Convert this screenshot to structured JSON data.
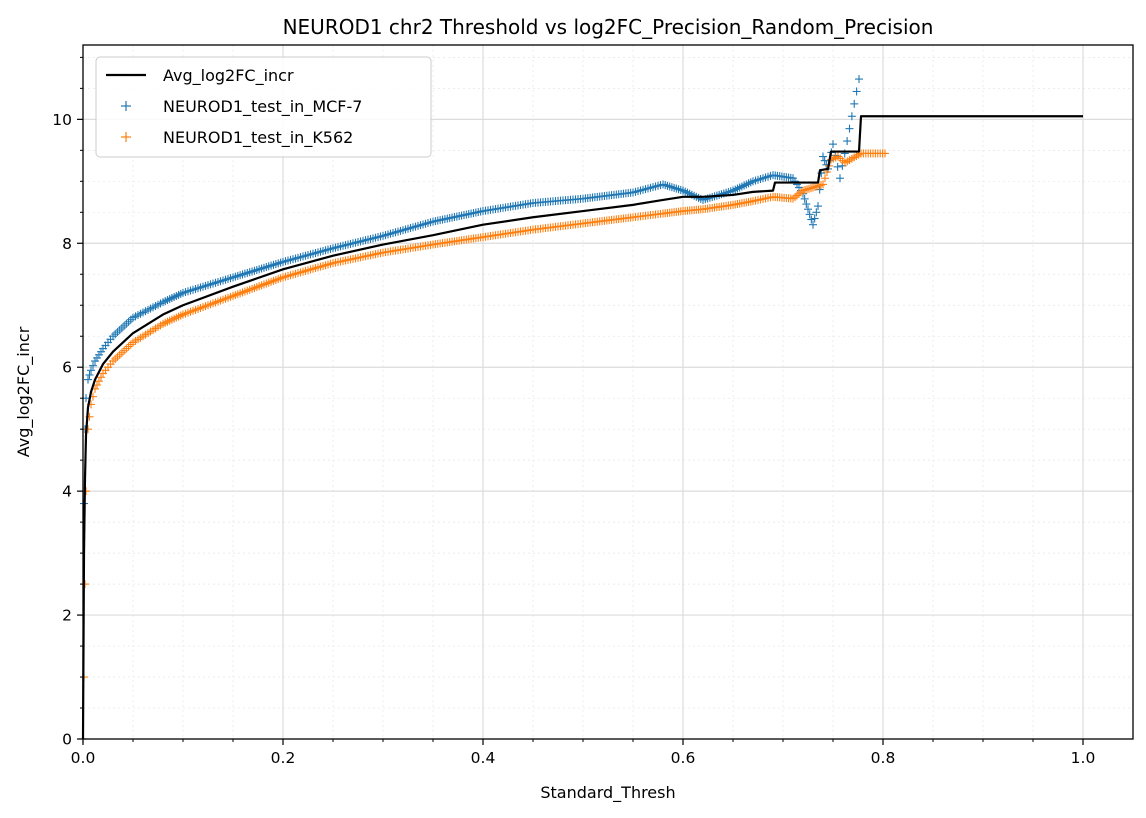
{
  "chart_data": {
    "type": "scatter",
    "title": "NEUROD1 chr2 Threshold vs log2FC_Precision_Random_Precision",
    "xlabel": "Standard_Thresh",
    "ylabel": "Avg_log2FC_incr",
    "xlim": [
      0,
      1.05
    ],
    "ylim": [
      0,
      11.2
    ],
    "x_ticks": [
      0.0,
      0.2,
      0.4,
      0.6,
      0.8,
      1.0
    ],
    "x_tick_labels": [
      "0.0",
      "0.2",
      "0.4",
      "0.6",
      "0.8",
      "1.0"
    ],
    "y_ticks": [
      0,
      2,
      4,
      6,
      8,
      10
    ],
    "y_tick_labels": [
      "0",
      "2",
      "4",
      "6",
      "8",
      "10"
    ],
    "grid": true,
    "minor_grid": true,
    "legend_position": "top-left",
    "series": [
      {
        "name": "Avg_log2FC_incr",
        "kind": "line",
        "color": "#000000",
        "x": [
          0.0,
          0.001,
          0.002,
          0.003,
          0.005,
          0.008,
          0.012,
          0.02,
          0.03,
          0.05,
          0.08,
          0.1,
          0.15,
          0.2,
          0.25,
          0.3,
          0.35,
          0.4,
          0.45,
          0.5,
          0.55,
          0.58,
          0.6,
          0.62,
          0.65,
          0.67,
          0.69,
          0.692,
          0.735,
          0.737,
          0.745,
          0.748,
          0.776,
          0.778,
          1.0
        ],
        "y": [
          0.0,
          3.0,
          4.2,
          4.9,
          5.35,
          5.6,
          5.8,
          6.05,
          6.25,
          6.55,
          6.85,
          7.0,
          7.3,
          7.58,
          7.8,
          7.98,
          8.13,
          8.3,
          8.42,
          8.52,
          8.62,
          8.7,
          8.75,
          8.75,
          8.78,
          8.83,
          8.85,
          8.98,
          8.98,
          9.18,
          9.2,
          9.48,
          9.48,
          10.05,
          10.05
        ]
      },
      {
        "name": "NEUROD1_test_in_MCF-7",
        "kind": "scatter",
        "marker": "+",
        "color": "#1f77b4",
        "x": [
          0.0,
          0.001,
          0.002,
          0.003,
          0.005,
          0.008,
          0.012,
          0.02,
          0.03,
          0.05,
          0.08,
          0.1,
          0.15,
          0.2,
          0.25,
          0.3,
          0.35,
          0.4,
          0.45,
          0.5,
          0.55,
          0.58,
          0.6,
          0.62,
          0.65,
          0.67,
          0.69,
          0.71,
          0.72,
          0.725,
          0.73,
          0.735,
          0.74,
          0.745,
          0.75,
          0.757,
          0.776
        ],
        "y": [
          0.0,
          3.8,
          5.0,
          5.5,
          5.8,
          5.95,
          6.1,
          6.3,
          6.5,
          6.8,
          7.05,
          7.2,
          7.45,
          7.7,
          7.92,
          8.12,
          8.35,
          8.52,
          8.65,
          8.72,
          8.82,
          8.95,
          8.85,
          8.7,
          8.85,
          9.0,
          9.1,
          9.05,
          8.8,
          8.55,
          8.3,
          8.6,
          9.4,
          9.2,
          9.6,
          9.05,
          10.65
        ]
      },
      {
        "name": "NEUROD1_test_in_K562",
        "kind": "scatter",
        "marker": "+",
        "color": "#ff7f0e",
        "x": [
          0.0,
          0.001,
          0.002,
          0.003,
          0.005,
          0.008,
          0.012,
          0.02,
          0.03,
          0.05,
          0.08,
          0.1,
          0.15,
          0.2,
          0.25,
          0.3,
          0.35,
          0.4,
          0.45,
          0.5,
          0.55,
          0.58,
          0.6,
          0.62,
          0.65,
          0.67,
          0.69,
          0.71,
          0.72,
          0.73,
          0.74,
          0.748,
          0.755,
          0.762,
          0.778,
          0.802
        ],
        "y": [
          0.0,
          1.0,
          2.5,
          4.0,
          5.0,
          5.4,
          5.65,
          5.9,
          6.1,
          6.4,
          6.7,
          6.85,
          7.15,
          7.45,
          7.68,
          7.85,
          7.98,
          8.1,
          8.22,
          8.32,
          8.42,
          8.48,
          8.52,
          8.55,
          8.62,
          8.68,
          8.75,
          8.72,
          8.85,
          8.9,
          8.95,
          9.35,
          9.4,
          9.3,
          9.45,
          9.45
        ]
      }
    ]
  }
}
